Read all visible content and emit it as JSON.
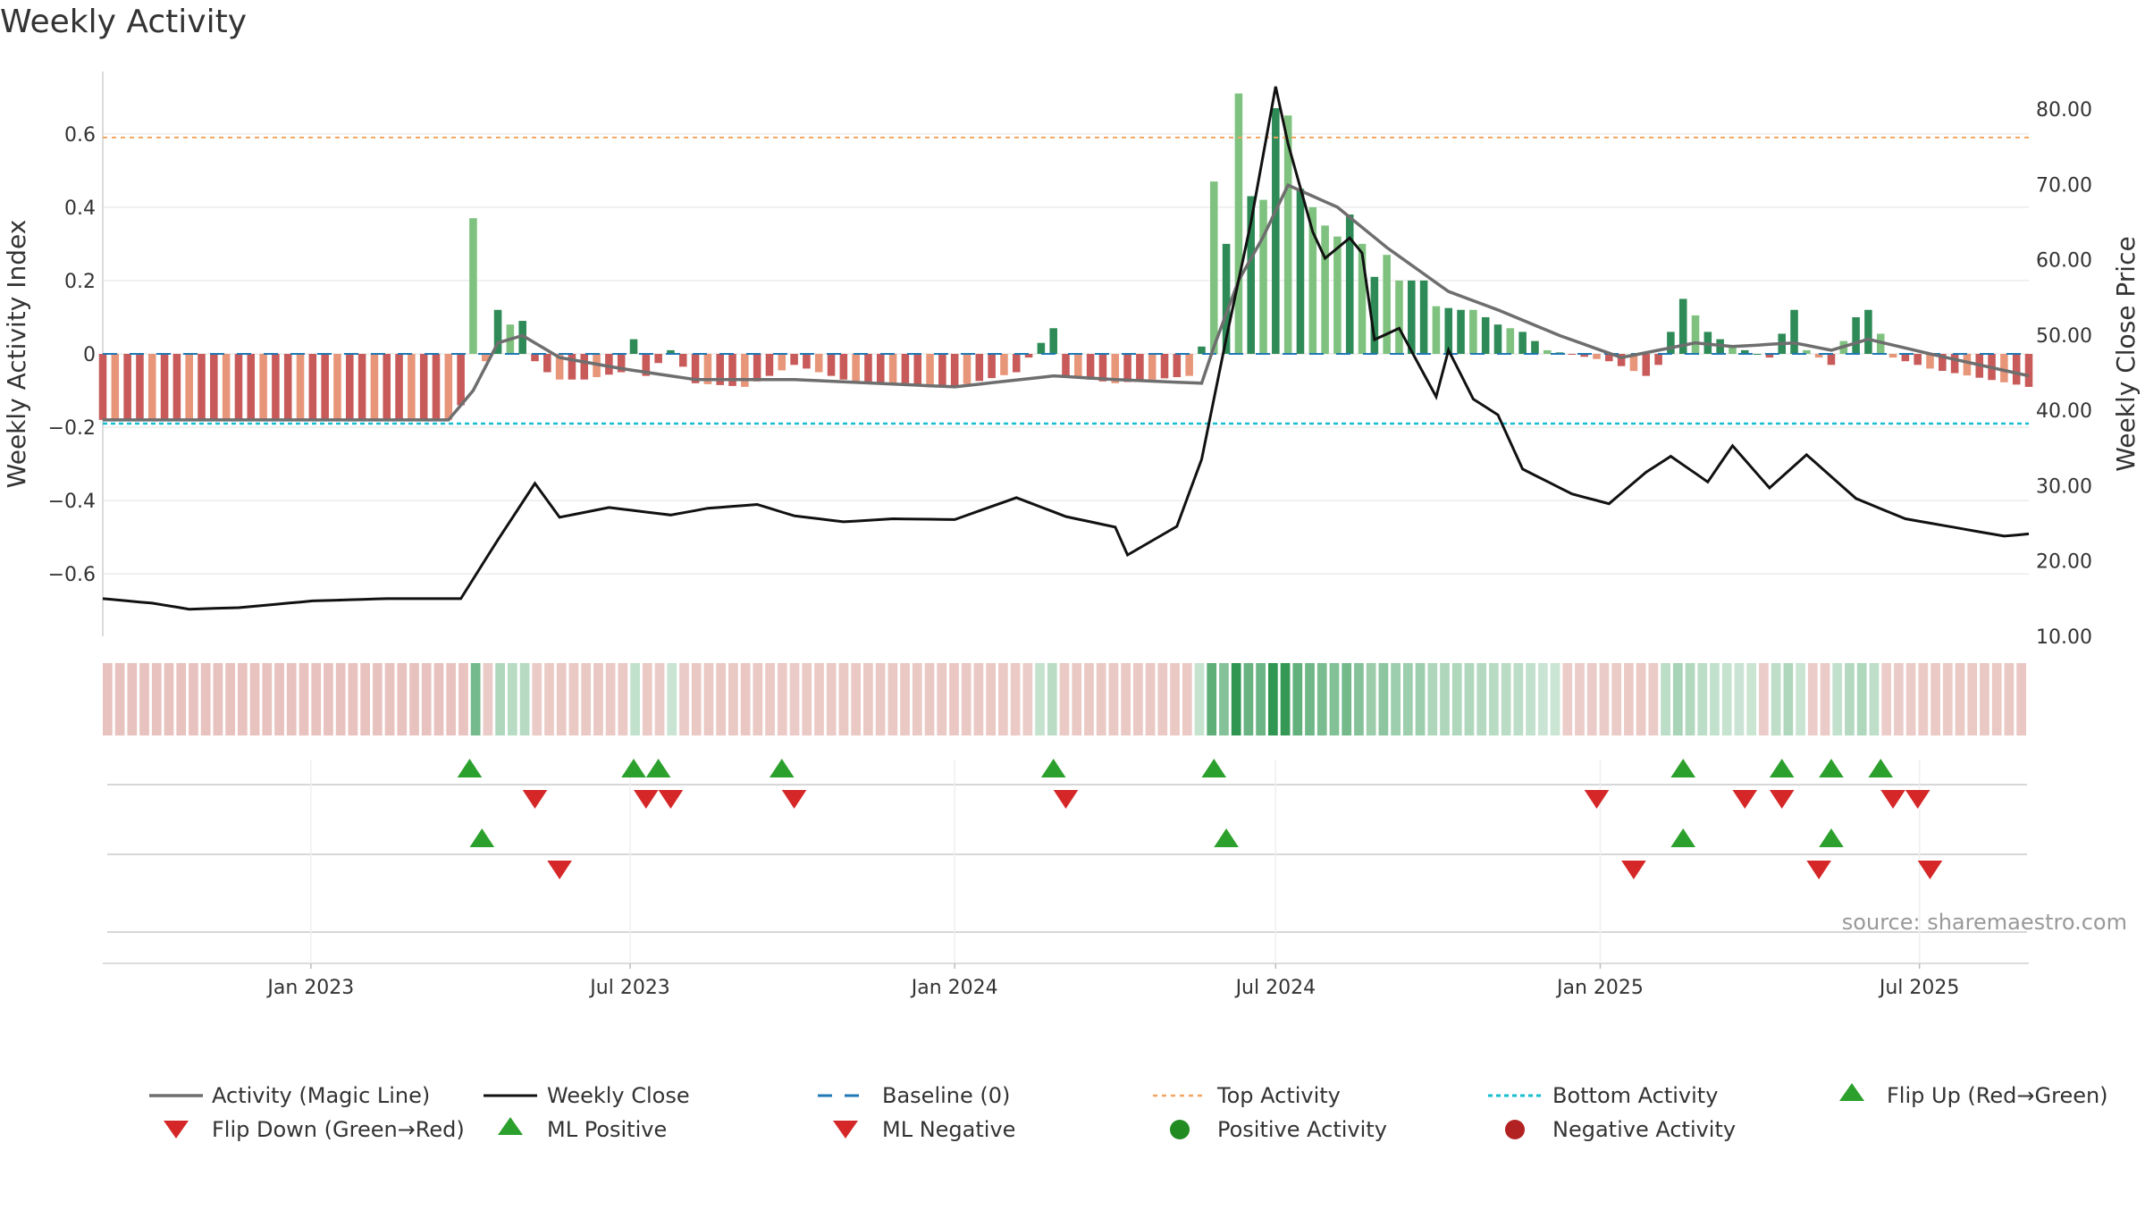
{
  "title": "Weekly Activity",
  "source_note": "source: sharemaestro.com",
  "colors": {
    "strong_green": "#2e8b57",
    "light_green": "#7fc27f",
    "strong_red": "#c85a5a",
    "light_red": "#e8967a",
    "magic_line": "#6e6e6e",
    "weekly_close": "#111111",
    "baseline": "#1f77b4",
    "top_activity": "#f4a460",
    "bottom_activity": "#17becf",
    "flip_up": "#2ca02c",
    "flip_down": "#d62728",
    "ml_positive": "#2ca02c",
    "ml_negative": "#d62728",
    "positive_activity": "#228b22",
    "negative_activity": "#b22222"
  },
  "legend": {
    "magic_line": "Activity (Magic Line)",
    "weekly_close": "Weekly Close",
    "baseline": "Baseline (0)",
    "top_activity": "Top Activity",
    "bottom_activity": "Bottom Activity",
    "flip_up": "Flip Up (Red→Green)",
    "flip_down": "Flip Down (Green→Red)",
    "ml_positive": "ML Positive",
    "ml_negative": "ML Negative",
    "positive_activity": "Positive Activity",
    "negative_activity": "Negative Activity"
  },
  "chart_data": {
    "type": "bar",
    "title": "Weekly Activity",
    "ylabel": "Weekly Activity Index",
    "ylabel_right": "Weekly Close Price",
    "ylim": [
      -0.77,
      0.77
    ],
    "ylim_right": [
      10,
      85
    ],
    "yticks": [
      0.6,
      0.4,
      0.2,
      0,
      -0.2,
      -0.4,
      -0.6
    ],
    "ytick_labels": [
      "0.6",
      "0.4",
      "0.2",
      "0",
      "−0.2",
      "−0.4",
      "−0.6"
    ],
    "yticks_right": [
      80,
      70,
      60,
      50,
      40,
      30,
      20,
      10
    ],
    "ytick_labels_right": [
      "80.00",
      "70.00",
      "60.00",
      "50.00",
      "40.00",
      "30.00",
      "20.00",
      "10.00"
    ],
    "x_start": "2022-09-05",
    "x_end": "2025-09-01",
    "xticks": [
      "2023-01-01",
      "2023-07-01",
      "2024-01-01",
      "2024-07-01",
      "2025-01-01",
      "2025-07-01"
    ],
    "xtick_labels": [
      "Jan 2023",
      "Jul 2023",
      "Jan 2024",
      "Jul 2024",
      "Jan 2025",
      "Jul 2025"
    ],
    "top_activity": 0.59,
    "bottom_activity": -0.19,
    "baseline": 0,
    "legend_position": "bottom",
    "activity_keyframes": [
      [
        "2022-09-05",
        -0.18
      ],
      [
        "2023-03-20",
        -0.18
      ],
      [
        "2023-03-27",
        -0.14
      ],
      [
        "2023-04-03",
        0.37
      ],
      [
        "2023-04-10",
        -0.02
      ],
      [
        "2023-04-17",
        0.12
      ],
      [
        "2023-04-24",
        0.08
      ],
      [
        "2023-05-01",
        0.09
      ],
      [
        "2023-05-08",
        -0.02
      ],
      [
        "2023-05-15",
        -0.05
      ],
      [
        "2023-05-22",
        -0.07
      ],
      [
        "2023-06-05",
        -0.07
      ],
      [
        "2023-06-26",
        -0.05
      ],
      [
        "2023-07-03",
        0.04
      ],
      [
        "2023-07-10",
        -0.06
      ],
      [
        "2023-07-24",
        0.01
      ],
      [
        "2023-08-07",
        -0.08
      ],
      [
        "2023-09-04",
        -0.09
      ],
      [
        "2023-10-02",
        -0.03
      ],
      [
        "2023-11-06",
        -0.08
      ],
      [
        "2023-12-04",
        -0.08
      ],
      [
        "2024-01-01",
        -0.09
      ],
      [
        "2024-02-05",
        -0.05
      ],
      [
        "2024-02-26",
        0.07
      ],
      [
        "2024-03-04",
        -0.06
      ],
      [
        "2024-04-01",
        -0.08
      ],
      [
        "2024-05-13",
        -0.06
      ],
      [
        "2024-05-20",
        0.02
      ],
      [
        "2024-05-27",
        0.47
      ],
      [
        "2024-06-03",
        0.3
      ],
      [
        "2024-06-10",
        0.71
      ],
      [
        "2024-06-17",
        0.43
      ],
      [
        "2024-06-24",
        0.42
      ],
      [
        "2024-07-01",
        0.67
      ],
      [
        "2024-07-08",
        0.65
      ],
      [
        "2024-07-15",
        0.45
      ],
      [
        "2024-07-22",
        0.4
      ],
      [
        "2024-07-29",
        0.35
      ],
      [
        "2024-08-05",
        0.32
      ],
      [
        "2024-08-12",
        0.38
      ],
      [
        "2024-08-19",
        0.3
      ],
      [
        "2024-08-26",
        0.21
      ],
      [
        "2024-09-02",
        0.27
      ],
      [
        "2024-09-09",
        0.2
      ],
      [
        "2024-09-23",
        0.2
      ],
      [
        "2024-09-30",
        0.13
      ],
      [
        "2024-10-14",
        0.12
      ],
      [
        "2024-10-21",
        0.12
      ],
      [
        "2024-11-04",
        0.08
      ],
      [
        "2024-11-18",
        0.06
      ],
      [
        "2024-12-02",
        0.01
      ],
      [
        "2025-01-06",
        -0.02
      ],
      [
        "2025-01-27",
        -0.06
      ],
      [
        "2025-02-03",
        -0.03
      ],
      [
        "2025-02-17",
        0.15
      ],
      [
        "2025-03-03",
        0.06
      ],
      [
        "2025-03-17",
        0.02
      ],
      [
        "2025-04-07",
        -0.01
      ],
      [
        "2025-04-21",
        0.12
      ],
      [
        "2025-04-28",
        0.01
      ],
      [
        "2025-05-12",
        -0.03
      ],
      [
        "2025-05-26",
        0.1
      ],
      [
        "2025-06-02",
        0.12
      ],
      [
        "2025-06-16",
        -0.01
      ],
      [
        "2025-07-07",
        -0.04
      ],
      [
        "2025-09-01",
        -0.09
      ]
    ],
    "magic_line_keyframes": [
      [
        "2022-09-05",
        -0.18
      ],
      [
        "2023-03-20",
        -0.18
      ],
      [
        "2023-04-03",
        -0.1
      ],
      [
        "2023-04-17",
        0.03
      ],
      [
        "2023-05-01",
        0.05
      ],
      [
        "2023-05-22",
        -0.01
      ],
      [
        "2023-06-26",
        -0.04
      ],
      [
        "2023-08-07",
        -0.07
      ],
      [
        "2023-10-02",
        -0.07
      ],
      [
        "2024-01-01",
        -0.09
      ],
      [
        "2024-02-26",
        -0.06
      ],
      [
        "2024-04-01",
        -0.07
      ],
      [
        "2024-05-20",
        -0.08
      ],
      [
        "2024-05-27",
        0.02
      ],
      [
        "2024-06-10",
        0.2
      ],
      [
        "2024-06-24",
        0.32
      ],
      [
        "2024-07-08",
        0.46
      ],
      [
        "2024-08-05",
        0.4
      ],
      [
        "2024-09-02",
        0.29
      ],
      [
        "2024-10-07",
        0.17
      ],
      [
        "2024-11-04",
        0.12
      ],
      [
        "2024-12-09",
        0.05
      ],
      [
        "2025-01-13",
        -0.01
      ],
      [
        "2025-02-24",
        0.03
      ],
      [
        "2025-03-17",
        0.02
      ],
      [
        "2025-04-21",
        0.03
      ],
      [
        "2025-05-12",
        0.01
      ],
      [
        "2025-06-02",
        0.04
      ],
      [
        "2025-07-07",
        0.0
      ],
      [
        "2025-09-01",
        -0.06
      ]
    ],
    "close_keyframes": [
      [
        "2022-09-05",
        15.0
      ],
      [
        "2022-10-03",
        14.4
      ],
      [
        "2022-10-24",
        13.6
      ],
      [
        "2022-11-21",
        13.8
      ],
      [
        "2023-01-02",
        14.7
      ],
      [
        "2023-02-13",
        15.0
      ],
      [
        "2023-03-27",
        15.0
      ],
      [
        "2023-04-17",
        22.8
      ],
      [
        "2023-05-08",
        30.3
      ],
      [
        "2023-05-22",
        25.8
      ],
      [
        "2023-06-19",
        27.1
      ],
      [
        "2023-07-24",
        26.1
      ],
      [
        "2023-08-14",
        27.0
      ],
      [
        "2023-09-11",
        27.5
      ],
      [
        "2023-10-02",
        26.0
      ],
      [
        "2023-10-30",
        25.2
      ],
      [
        "2023-11-27",
        25.6
      ],
      [
        "2024-01-01",
        25.5
      ],
      [
        "2024-02-05",
        28.4
      ],
      [
        "2024-03-04",
        25.9
      ],
      [
        "2024-04-01",
        24.5
      ],
      [
        "2024-04-08",
        20.8
      ],
      [
        "2024-05-06",
        24.6
      ],
      [
        "2024-05-20",
        33.5
      ],
      [
        "2024-06-03",
        49.6
      ],
      [
        "2024-06-17",
        65.0
      ],
      [
        "2024-07-01",
        83.0
      ],
      [
        "2024-07-08",
        75.4
      ],
      [
        "2024-07-22",
        63.7
      ],
      [
        "2024-07-29",
        60.2
      ],
      [
        "2024-08-12",
        62.9
      ],
      [
        "2024-08-19",
        60.9
      ],
      [
        "2024-08-26",
        49.4
      ],
      [
        "2024-09-09",
        50.9
      ],
      [
        "2024-09-30",
        41.8
      ],
      [
        "2024-10-07",
        48.0
      ],
      [
        "2024-10-21",
        41.5
      ],
      [
        "2024-11-04",
        39.4
      ],
      [
        "2024-11-18",
        32.2
      ],
      [
        "2024-12-16",
        28.9
      ],
      [
        "2025-01-06",
        27.6
      ],
      [
        "2025-01-27",
        31.8
      ],
      [
        "2025-02-10",
        33.9
      ],
      [
        "2025-03-03",
        30.5
      ],
      [
        "2025-03-17",
        35.3
      ],
      [
        "2025-04-07",
        29.7
      ],
      [
        "2025-04-28",
        34.1
      ],
      [
        "2025-05-26",
        28.3
      ],
      [
        "2025-06-23",
        25.6
      ],
      [
        "2025-08-18",
        23.3
      ],
      [
        "2025-09-01",
        23.6
      ]
    ],
    "events": {
      "flip_up": [
        "2023-04-01",
        "2023-07-03",
        "2023-07-17",
        "2023-09-25",
        "2024-02-26",
        "2024-05-27",
        "2025-02-17",
        "2025-04-14",
        "2025-05-12",
        "2025-06-09"
      ],
      "flip_down": [
        "2023-05-08",
        "2023-07-10",
        "2023-07-24",
        "2023-10-02",
        "2024-03-04",
        "2024-12-30",
        "2025-03-24",
        "2025-04-14",
        "2025-06-16",
        "2025-06-30"
      ],
      "ml_positive": [
        "2023-04-08",
        "2024-06-03",
        "2025-02-17",
        "2025-05-12"
      ],
      "ml_negative": [
        "2023-05-22",
        "2025-01-20",
        "2025-05-05",
        "2025-07-07"
      ]
    }
  }
}
